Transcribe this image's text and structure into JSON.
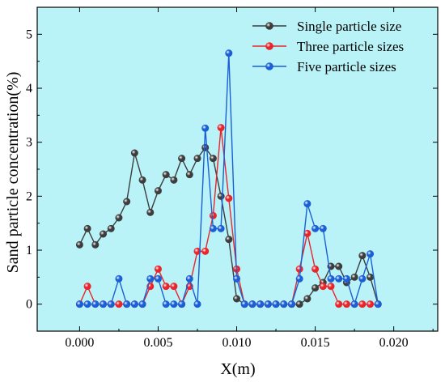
{
  "chart_data": {
    "type": "line",
    "title": "",
    "xlabel": "X(m)",
    "ylabel": "Sand particle concentration(%)",
    "xlim": [
      -0.0027,
      0.0228
    ],
    "ylim": [
      -0.5,
      5.5
    ],
    "x_ticks": [
      "0.000",
      "0.005",
      "0.010",
      "0.015",
      "0.020"
    ],
    "x_tick_values": [
      0,
      0.005,
      0.01,
      0.015,
      0.02
    ],
    "y_ticks": [
      "0",
      "1",
      "2",
      "3",
      "4",
      "5"
    ],
    "y_tick_values": [
      0,
      1,
      2,
      3,
      4,
      5
    ],
    "grid": false,
    "background_color": "#b9f3f7",
    "legend": {
      "placement": "top-right"
    },
    "x": [
      0,
      0.0005,
      0.001,
      0.0015,
      0.002,
      0.0025,
      0.003,
      0.0035,
      0.004,
      0.0045,
      0.005,
      0.0055,
      0.006,
      0.0065,
      0.007,
      0.0075,
      0.008,
      0.0085,
      0.009,
      0.0095,
      0.01,
      0.0105,
      0.011,
      0.0115,
      0.012,
      0.0125,
      0.013,
      0.0135,
      0.014,
      0.0145,
      0.015,
      0.0155,
      0.016,
      0.0165,
      0.017,
      0.0175,
      0.018,
      0.0185,
      0.019
    ],
    "series": [
      {
        "name": "Single particle size",
        "color": "#3d3d3d",
        "values": [
          1.1,
          1.4,
          1.1,
          1.3,
          1.4,
          1.6,
          1.9,
          2.8,
          2.3,
          1.7,
          2.1,
          2.4,
          2.3,
          2.7,
          2.4,
          2.7,
          2.9,
          2.7,
          2.0,
          1.2,
          0.1,
          0,
          0,
          0,
          0,
          0,
          0,
          0,
          0,
          0.1,
          0.3,
          0.4,
          0.7,
          0.7,
          0.4,
          0.5,
          0.9,
          0.5,
          0
        ]
      },
      {
        "name": "Three particle sizes",
        "color": "#e8252b",
        "values": [
          0,
          0.33,
          0,
          0,
          0,
          0,
          0,
          0,
          0,
          0.33,
          0.65,
          0.33,
          0.33,
          0,
          0.33,
          0.98,
          0.98,
          1.64,
          3.27,
          1.96,
          0.65,
          0,
          0,
          0,
          0,
          0,
          0,
          0,
          0.65,
          1.31,
          0.65,
          0.33,
          0.33,
          0,
          0,
          0,
          0,
          0,
          0
        ]
      },
      {
        "name": "Five particle sizes",
        "color": "#1a5fd6",
        "values": [
          0,
          0,
          0,
          0,
          0,
          0.47,
          0,
          0,
          0,
          0.47,
          0.47,
          0,
          0,
          0,
          0.47,
          0,
          3.26,
          1.4,
          1.4,
          4.65,
          0.47,
          0,
          0,
          0,
          0,
          0,
          0,
          0,
          0.47,
          1.86,
          1.4,
          1.4,
          0.47,
          0.47,
          0.47,
          0,
          0.47,
          0.93,
          0
        ]
      }
    ]
  }
}
